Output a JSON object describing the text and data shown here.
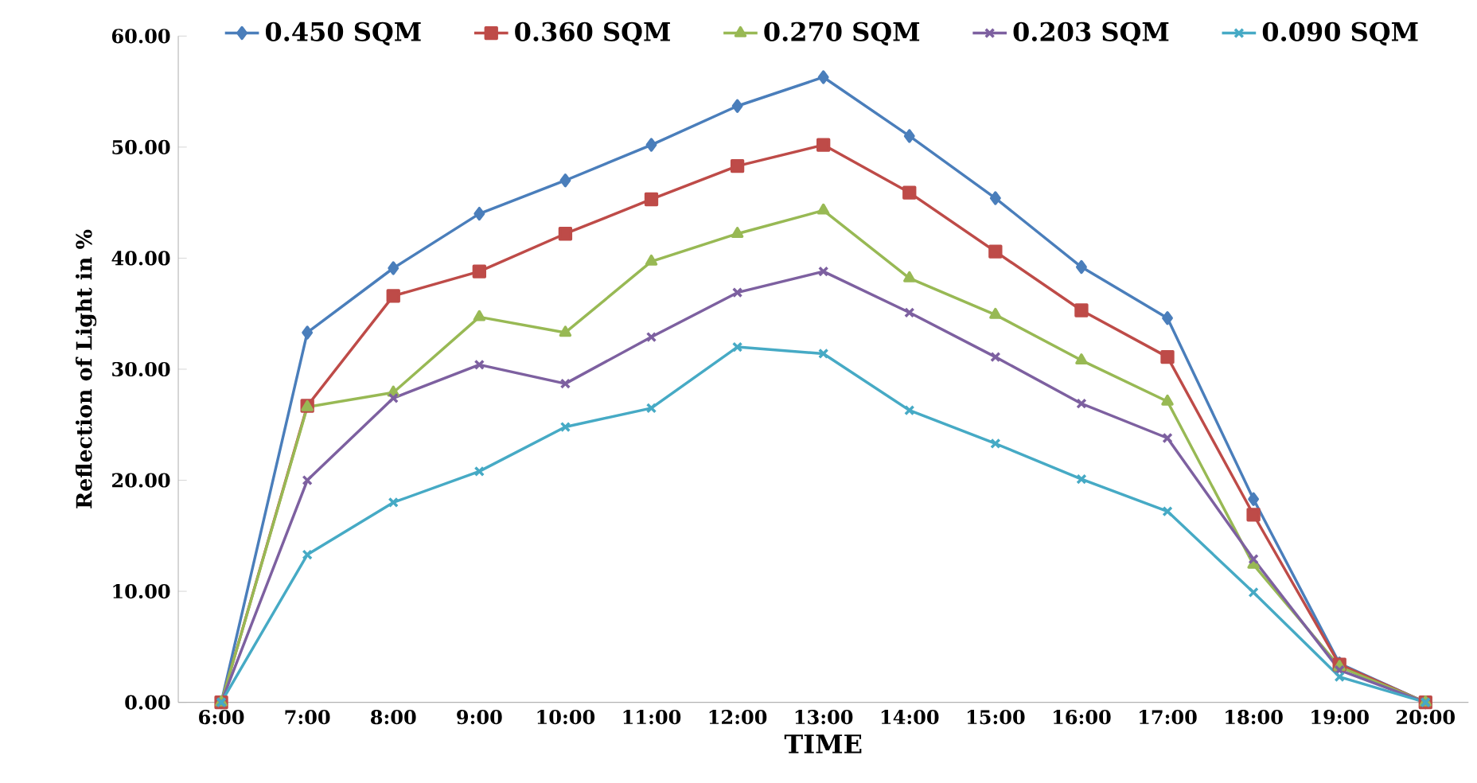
{
  "chart_data": {
    "type": "line",
    "xlabel": "TIME",
    "ylabel": "Reflection of Light in %",
    "categories": [
      "6:00",
      "7:00",
      "8:00",
      "9:00",
      "10:00",
      "11:00",
      "12:00",
      "13:00",
      "14:00",
      "15:00",
      "16:00",
      "17:00",
      "18:00",
      "19:00",
      "20:00"
    ],
    "series": [
      {
        "name": "0.450 SQM",
        "color": "#4a7ebb",
        "marker": "diamond",
        "values": [
          0,
          33.3,
          39.1,
          44.0,
          47.0,
          50.2,
          53.7,
          56.3,
          51.0,
          45.4,
          39.2,
          34.6,
          18.3,
          3.5,
          0
        ]
      },
      {
        "name": "0.360 SQM",
        "color": "#be4b48",
        "marker": "square",
        "values": [
          0,
          26.7,
          36.6,
          38.8,
          42.2,
          45.3,
          48.3,
          50.2,
          45.9,
          40.6,
          35.3,
          31.1,
          16.9,
          3.4,
          0
        ]
      },
      {
        "name": "0.270 SQM",
        "color": "#98b954",
        "marker": "triangle",
        "values": [
          0,
          26.6,
          27.9,
          34.7,
          33.3,
          39.7,
          42.2,
          44.3,
          38.2,
          34.9,
          30.8,
          27.1,
          12.4,
          3.2,
          0
        ]
      },
      {
        "name": "0.203 SQM",
        "color": "#7d60a0",
        "marker": "cross",
        "values": [
          0,
          20.0,
          27.4,
          30.4,
          28.7,
          32.9,
          36.9,
          38.8,
          35.1,
          31.1,
          26.9,
          23.8,
          12.9,
          2.9,
          0
        ]
      },
      {
        "name": "0.090 SQM",
        "color": "#46aac5",
        "marker": "cross",
        "values": [
          0,
          13.3,
          18.0,
          20.8,
          24.8,
          26.5,
          32.0,
          31.4,
          26.3,
          23.3,
          20.1,
          17.2,
          9.9,
          2.3,
          0
        ]
      }
    ],
    "ylim": [
      0,
      60
    ],
    "yticks": [
      {
        "value": 0,
        "label": "0.00"
      },
      {
        "value": 10,
        "label": "10.00"
      },
      {
        "value": 20,
        "label": "20.00"
      },
      {
        "value": 30,
        "label": "30.00"
      },
      {
        "value": 40,
        "label": "40.00"
      },
      {
        "value": 50,
        "label": "50.00"
      },
      {
        "value": 60,
        "label": "60.00"
      }
    ],
    "grid": false,
    "legend": "top",
    "line_style": "solid"
  }
}
